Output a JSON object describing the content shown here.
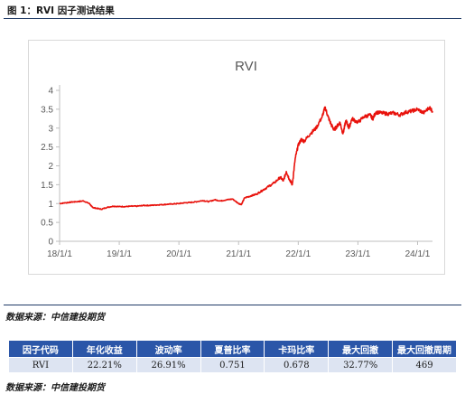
{
  "figure_title": "图 1：RVI 因子测试结果",
  "source_top": "数据来源：中信建投期货",
  "source_bottom": "数据来源：中信建投期货",
  "table": {
    "headers": [
      "因子代码",
      "年化收益",
      "波动率",
      "夏普比率",
      "卡玛比率",
      "最大回撤",
      "最大回撤周期"
    ],
    "rows": [
      [
        "RVI",
        "22.21%",
        "26.91%",
        "0.751",
        "0.678",
        "32.77%",
        "469"
      ]
    ]
  },
  "colors": {
    "line": "#e8120c",
    "header_bg": "#2b56a8",
    "cell_bg": "#dde4f2",
    "axis": "#bfbfbf",
    "text": "#595959"
  },
  "chart_data": {
    "type": "line",
    "title": "RVI",
    "xlabel": "",
    "ylabel": "",
    "ylim": [
      0,
      4
    ],
    "yticks": [
      "0",
      "0.5",
      "1",
      "1.5",
      "2",
      "2.5",
      "3",
      "3.5",
      "4"
    ],
    "xticks": [
      {
        "label": "18/1/1",
        "t": 0
      },
      {
        "label": "19/1/1",
        "t": 1
      },
      {
        "label": "20/1/1",
        "t": 2
      },
      {
        "label": "21/1/1",
        "t": 3
      },
      {
        "label": "22/1/1",
        "t": 4
      },
      {
        "label": "23/1/1",
        "t": 5
      },
      {
        "label": "24/1/1",
        "t": 6
      }
    ],
    "grid": false,
    "legend": "none",
    "series": [
      {
        "x": [
          0.0,
          0.1,
          0.2,
          0.3,
          0.4,
          0.5,
          0.55,
          0.6,
          0.7,
          0.8,
          0.9,
          1.0,
          1.1,
          1.2,
          1.3,
          1.4,
          1.5,
          1.6,
          1.7,
          1.8,
          1.9,
          2.0,
          2.1,
          2.2,
          2.3,
          2.4,
          2.5,
          2.6,
          2.7,
          2.8,
          2.9,
          3.0,
          3.05,
          3.1,
          3.2,
          3.3,
          3.4,
          3.5,
          3.6,
          3.7,
          3.75,
          3.8,
          3.85,
          3.9,
          3.95,
          4.0,
          4.05,
          4.1,
          4.2,
          4.3,
          4.4,
          4.45,
          4.5,
          4.55,
          4.6,
          4.65,
          4.7,
          4.75,
          4.8,
          4.85,
          4.9,
          5.0,
          5.1,
          5.2,
          5.25,
          5.3,
          5.4,
          5.5,
          5.6,
          5.7,
          5.8,
          5.9,
          6.0,
          6.1,
          6.2,
          6.25
        ],
        "y": [
          1.0,
          1.02,
          1.04,
          1.05,
          1.07,
          1.0,
          0.9,
          0.88,
          0.85,
          0.9,
          0.93,
          0.92,
          0.92,
          0.93,
          0.93,
          0.95,
          0.95,
          0.96,
          0.97,
          0.98,
          0.99,
          1.0,
          1.02,
          1.03,
          1.05,
          1.08,
          1.05,
          1.1,
          1.07,
          1.1,
          1.12,
          1.0,
          0.98,
          1.15,
          1.2,
          1.25,
          1.35,
          1.45,
          1.55,
          1.7,
          1.6,
          1.85,
          1.65,
          1.5,
          2.2,
          2.55,
          2.7,
          2.65,
          2.85,
          3.0,
          3.3,
          3.55,
          3.3,
          3.1,
          2.95,
          3.05,
          3.15,
          2.85,
          3.2,
          3.0,
          3.25,
          3.15,
          3.3,
          3.35,
          3.25,
          3.42,
          3.4,
          3.38,
          3.4,
          3.35,
          3.42,
          3.45,
          3.5,
          3.4,
          3.55,
          3.45
        ]
      }
    ]
  }
}
